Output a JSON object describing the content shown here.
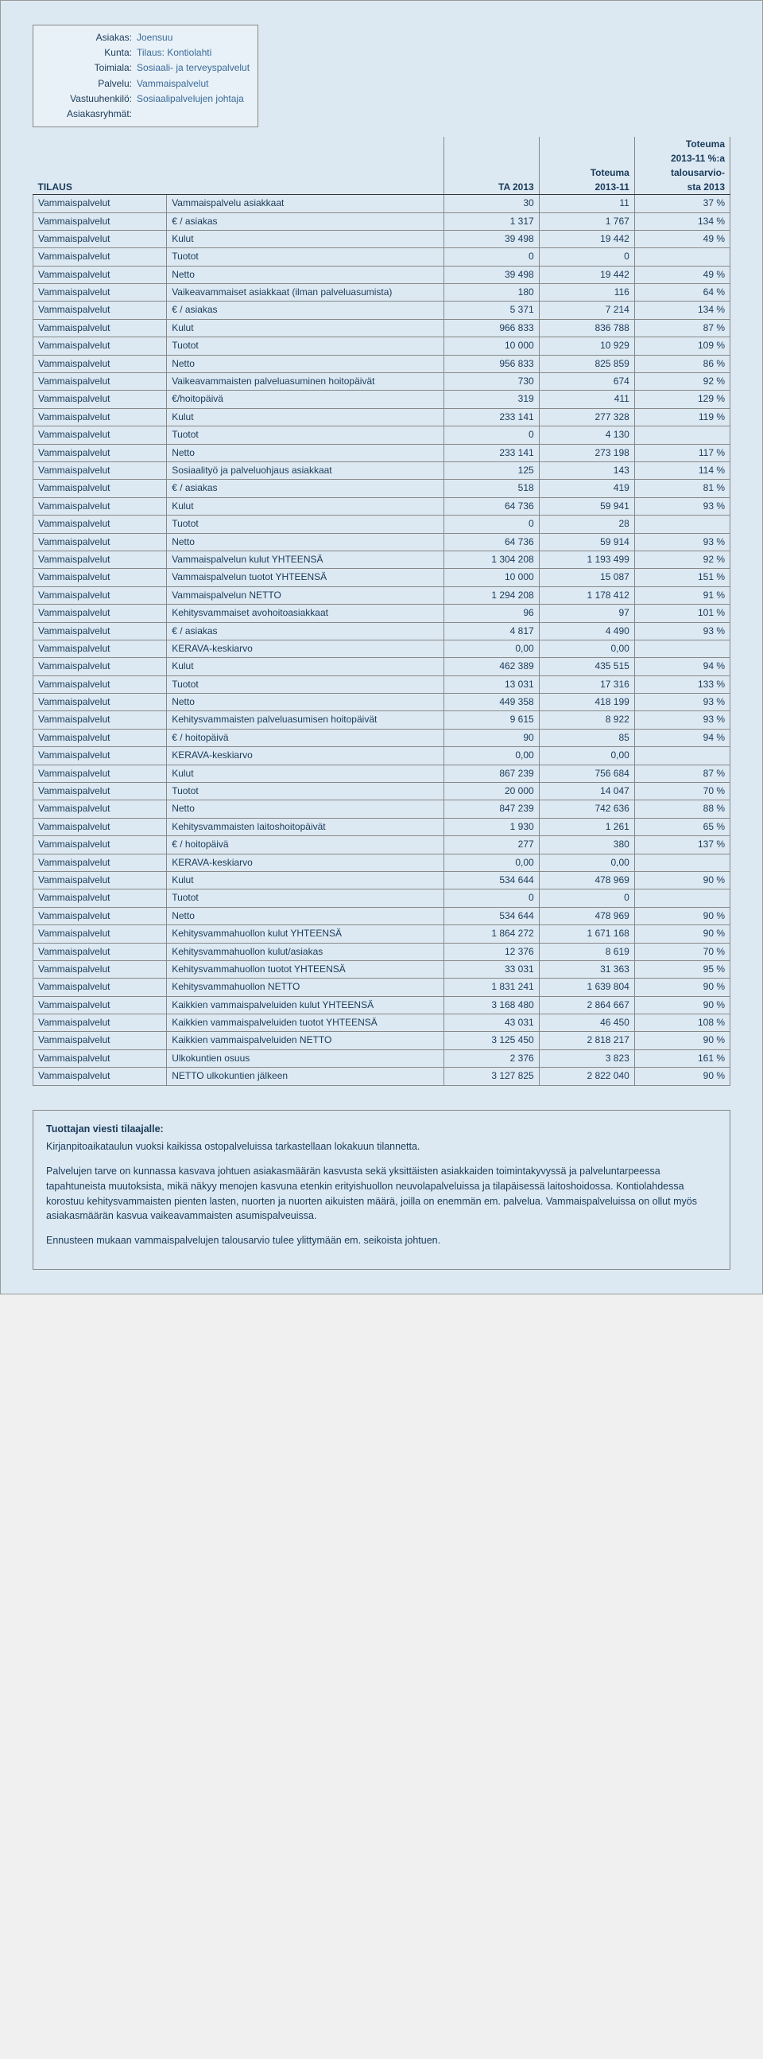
{
  "colors": {
    "page_bg": "#dce9f2",
    "text": "#1a3a5a",
    "value": "#3a6a9a",
    "border": "#888"
  },
  "info": {
    "rows": [
      {
        "label": "Asiakas:",
        "value": "Joensuu"
      },
      {
        "label": "Kunta:",
        "value": "Tilaus: Kontiolahti"
      },
      {
        "label": "Toimiala:",
        "value": "Sosiaali- ja terveyspalvelut"
      },
      {
        "label": "Palvelu:",
        "value": "Vammaispalvelut"
      },
      {
        "label": "Vastuuhenkilö:",
        "value": "Sosiaalipalvelujen johtaja"
      },
      {
        "label": "Asiakasryhmät:",
        "value": ""
      }
    ]
  },
  "header": {
    "line1": [
      "",
      "",
      "",
      "",
      "Toteuma"
    ],
    "line2": [
      "",
      "",
      "",
      "",
      "2013-11 %:a"
    ],
    "line3": [
      "",
      "",
      "",
      "Toteuma",
      "talousarvio-"
    ],
    "line4": [
      "TILAUS",
      "",
      "TA 2013",
      "2013-11",
      "sta 2013"
    ]
  },
  "rows": [
    [
      "Vammaispalvelut",
      "Vammaispalvelu asiakkaat",
      "30",
      "11",
      "37 %"
    ],
    [
      "Vammaispalvelut",
      "€ / asiakas",
      "1 317",
      "1 767",
      "134 %"
    ],
    [
      "Vammaispalvelut",
      "Kulut",
      "39 498",
      "19 442",
      "49 %"
    ],
    [
      "Vammaispalvelut",
      "Tuotot",
      "0",
      "0",
      ""
    ],
    [
      "Vammaispalvelut",
      "Netto",
      "39 498",
      "19 442",
      "49 %"
    ],
    [
      "Vammaispalvelut",
      "Vaikeavammaiset asiakkaat (ilman palveluasumista)",
      "180",
      "116",
      "64 %"
    ],
    [
      "Vammaispalvelut",
      "€ / asiakas",
      "5 371",
      "7 214",
      "134 %"
    ],
    [
      "Vammaispalvelut",
      "Kulut",
      "966 833",
      "836 788",
      "87 %"
    ],
    [
      "Vammaispalvelut",
      "Tuotot",
      "10 000",
      "10 929",
      "109 %"
    ],
    [
      "Vammaispalvelut",
      "Netto",
      "956 833",
      "825 859",
      "86 %"
    ],
    [
      "Vammaispalvelut",
      "Vaikeavammaisten palveluasuminen hoitopäivät",
      "730",
      "674",
      "92 %"
    ],
    [
      "Vammaispalvelut",
      "€/hoitopäivä",
      "319",
      "411",
      "129 %"
    ],
    [
      "Vammaispalvelut",
      "Kulut",
      "233 141",
      "277 328",
      "119 %"
    ],
    [
      "Vammaispalvelut",
      "Tuotot",
      "0",
      "4 130",
      ""
    ],
    [
      "Vammaispalvelut",
      "Netto",
      "233 141",
      "273 198",
      "117 %"
    ],
    [
      "Vammaispalvelut",
      "Sosiaalityö ja palveluohjaus asiakkaat",
      "125",
      "143",
      "114 %"
    ],
    [
      "Vammaispalvelut",
      "€ / asiakas",
      "518",
      "419",
      "81 %"
    ],
    [
      "Vammaispalvelut",
      "Kulut",
      "64 736",
      "59 941",
      "93 %"
    ],
    [
      "Vammaispalvelut",
      "Tuotot",
      "0",
      "28",
      ""
    ],
    [
      "Vammaispalvelut",
      "Netto",
      "64 736",
      "59 914",
      "93 %"
    ],
    [
      "Vammaispalvelut",
      "Vammaispalvelun kulut YHTEENSÄ",
      "1 304 208",
      "1 193 499",
      "92 %"
    ],
    [
      "Vammaispalvelut",
      "Vammaispalvelun tuotot YHTEENSÄ",
      "10 000",
      "15 087",
      "151 %"
    ],
    [
      "Vammaispalvelut",
      "Vammaispalvelun NETTO",
      "1 294 208",
      "1 178 412",
      "91 %"
    ],
    [
      "Vammaispalvelut",
      "Kehitysvammaiset avohoitoasiakkaat",
      "96",
      "97",
      "101 %"
    ],
    [
      "Vammaispalvelut",
      "€ / asiakas",
      "4 817",
      "4 490",
      "93 %"
    ],
    [
      "Vammaispalvelut",
      "KERAVA-keskiarvo",
      "0,00",
      "0,00",
      ""
    ],
    [
      "Vammaispalvelut",
      "Kulut",
      "462 389",
      "435 515",
      "94 %"
    ],
    [
      "Vammaispalvelut",
      "Tuotot",
      "13 031",
      "17 316",
      "133 %"
    ],
    [
      "Vammaispalvelut",
      "Netto",
      "449 358",
      "418 199",
      "93 %"
    ],
    [
      "Vammaispalvelut",
      "Kehitysvammaisten palveluasumisen hoitopäivät",
      "9 615",
      "8 922",
      "93 %"
    ],
    [
      "Vammaispalvelut",
      "€ / hoitopäivä",
      "90",
      "85",
      "94 %"
    ],
    [
      "Vammaispalvelut",
      "KERAVA-keskiarvo",
      "0,00",
      "0,00",
      ""
    ],
    [
      "Vammaispalvelut",
      "Kulut",
      "867 239",
      "756 684",
      "87 %"
    ],
    [
      "Vammaispalvelut",
      "Tuotot",
      "20 000",
      "14 047",
      "70 %"
    ],
    [
      "Vammaispalvelut",
      "Netto",
      "847 239",
      "742 636",
      "88 %"
    ],
    [
      "Vammaispalvelut",
      "Kehitysvammaisten laitoshoitopäivät",
      "1 930",
      "1 261",
      "65 %"
    ],
    [
      "Vammaispalvelut",
      "€ / hoitopäivä",
      "277",
      "380",
      "137 %"
    ],
    [
      "Vammaispalvelut",
      "KERAVA-keskiarvo",
      "0,00",
      "0,00",
      ""
    ],
    [
      "Vammaispalvelut",
      "Kulut",
      "534 644",
      "478 969",
      "90 %"
    ],
    [
      "Vammaispalvelut",
      "Tuotot",
      "0",
      "0",
      ""
    ],
    [
      "Vammaispalvelut",
      "Netto",
      "534 644",
      "478 969",
      "90 %"
    ],
    [
      "Vammaispalvelut",
      "Kehitysvammahuollon kulut YHTEENSÄ",
      "1 864 272",
      "1 671 168",
      "90 %"
    ],
    [
      "Vammaispalvelut",
      "Kehitysvammahuollon kulut/asiakas",
      "12 376",
      "8 619",
      "70 %"
    ],
    [
      "Vammaispalvelut",
      "Kehitysvammahuollon tuotot YHTEENSÄ",
      "33 031",
      "31 363",
      "95 %"
    ],
    [
      "Vammaispalvelut",
      "Kehitysvammahuollon NETTO",
      "1 831 241",
      "1 639 804",
      "90 %"
    ],
    [
      "Vammaispalvelut",
      "Kaikkien vammaispalveluiden kulut YHTEENSÄ",
      "3 168 480",
      "2 864 667",
      "90 %"
    ],
    [
      "Vammaispalvelut",
      "Kaikkien vammaispalveluiden tuotot YHTEENSÄ",
      "43 031",
      "46 450",
      "108 %"
    ],
    [
      "Vammaispalvelut",
      "Kaikkien vammaispalveluiden NETTO",
      "3 125 450",
      "2 818 217",
      "90 %"
    ],
    [
      "Vammaispalvelut",
      "Ulkokuntien osuus",
      "2 376",
      "3 823",
      "161 %"
    ],
    [
      "Vammaispalvelut",
      "NETTO ulkokuntien jälkeen",
      "3 127 825",
      "2 822 040",
      "90 %"
    ]
  ],
  "message": {
    "title": "Tuottajan viesti tilaajalle:",
    "p1": "Kirjanpitoaikataulun vuoksi kaikissa ostopalveluissa tarkastellaan lokakuun tilannetta.",
    "p2": "Palvelujen tarve on kunnassa kasvava johtuen asiakasmäärän kasvusta sekä yksittäisten asiakkaiden toimintakyvyssä ja palveluntarpeessa tapahtuneista muutoksista, mikä näkyy menojen kasvuna etenkin erityishuollon neuvolapalveluissa ja tilapäisessä laitoshoidossa. Kontiolahdessa korostuu kehitysvammaisten pienten lasten, nuorten ja nuorten aikuisten määrä, joilla on enemmän em. palvelua. Vammaispalveluissa on ollut myös asiakasmäärän kasvua vaikeavammaisten asumispalveuissa.",
    "p3": "Ennusteen mukaan vammaispalvelujen talousarvio tulee ylittymään em. seikoista johtuen."
  }
}
